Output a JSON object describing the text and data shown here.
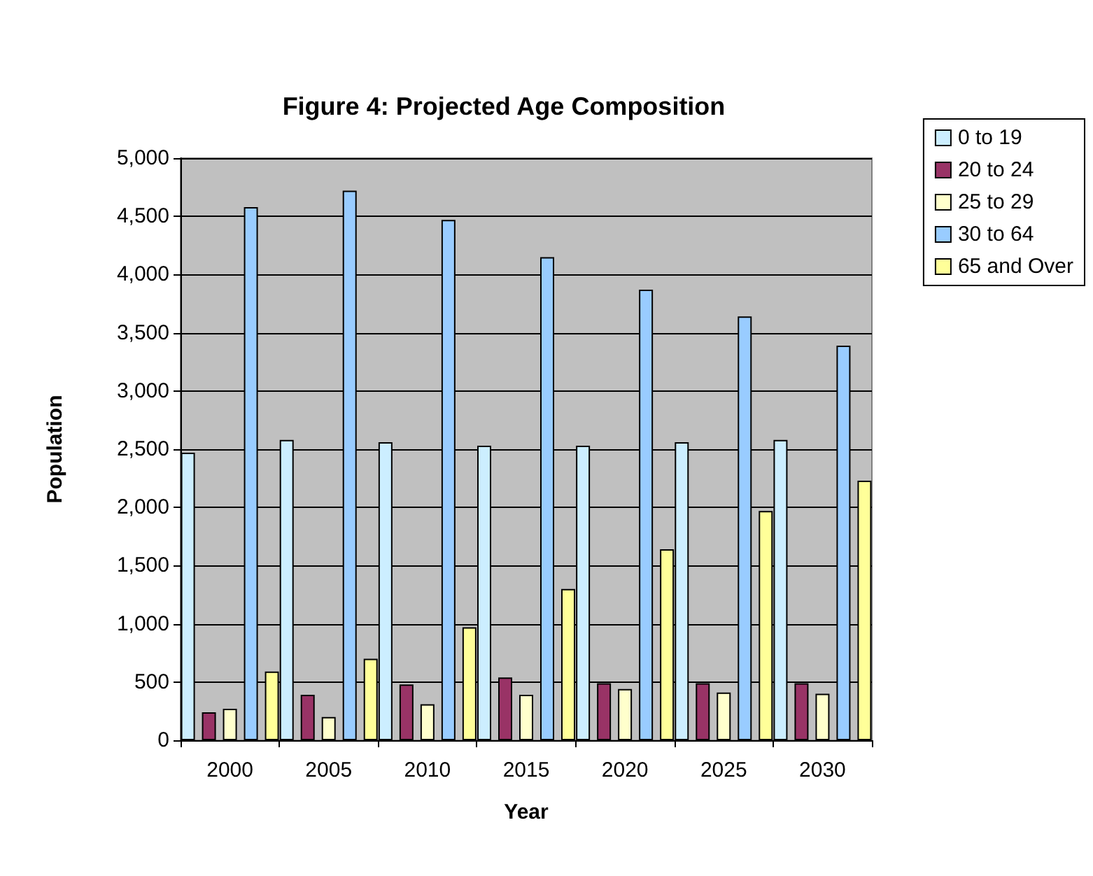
{
  "chart_data": {
    "type": "bar",
    "title": "Figure 4: Projected Age Composition",
    "xlabel": "Year",
    "ylabel": "Population",
    "categories": [
      "2000",
      "2005",
      "2010",
      "2015",
      "2020",
      "2025",
      "2030"
    ],
    "series": [
      {
        "name": "0 to 19",
        "color": "#cceeff",
        "values": [
          2470,
          2580,
          2560,
          2530,
          2530,
          2560,
          2580
        ]
      },
      {
        "name": "20 to 24",
        "color": "#993366",
        "values": [
          240,
          390,
          480,
          540,
          490,
          490,
          490
        ]
      },
      {
        "name": "25 to 29",
        "color": "#ffffcc",
        "values": [
          270,
          200,
          310,
          390,
          440,
          410,
          400
        ]
      },
      {
        "name": "30 to 64",
        "color": "#99ccff",
        "values": [
          4580,
          4720,
          4470,
          4150,
          3870,
          3640,
          3390
        ]
      },
      {
        "name": "65 and Over",
        "color": "#ffff99",
        "values": [
          590,
          700,
          970,
          1300,
          1640,
          1970,
          2230
        ]
      }
    ],
    "ylim": [
      0,
      5000
    ],
    "yticks": [
      0,
      500,
      {
        "value": 1000,
        "label": "1,000"
      },
      {
        "value": 1500,
        "label": "1,500"
      },
      {
        "value": 2000,
        "label": "2,000"
      },
      {
        "value": 2500,
        "label": "2,500"
      },
      {
        "value": 3000,
        "label": "3,000"
      },
      {
        "value": 3500,
        "label": "3,500"
      },
      {
        "value": 4000,
        "label": "4,000"
      },
      {
        "value": 4500,
        "label": "4,500"
      },
      {
        "value": 5000,
        "label": "5,000"
      }
    ],
    "grid": "y",
    "legend": "top right"
  }
}
